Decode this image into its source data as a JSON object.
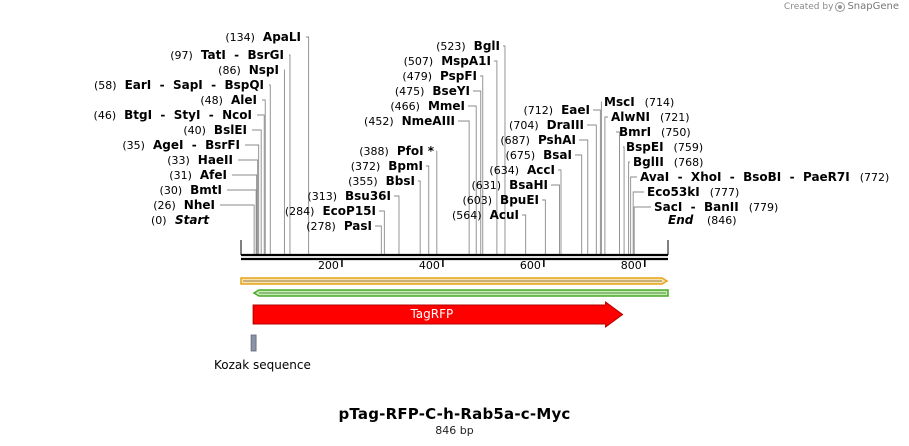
{
  "credit": {
    "text": "Created by",
    "brand": "SnapGene"
  },
  "plasmid": {
    "name": "pTag-RFP-C-h-Rab5a-c-Myc",
    "length_label": "846 bp",
    "length": 846
  },
  "ends": {
    "start": {
      "pos_label": "(0)",
      "label": "Start",
      "pos": 0
    },
    "end": {
      "pos_label": "(846)",
      "label": "End",
      "pos": 846
    }
  },
  "ruler": {
    "ticks": [
      {
        "label": "200",
        "pos": 200
      },
      {
        "label": "400",
        "pos": 400
      },
      {
        "label": "600",
        "pos": 600
      },
      {
        "label": "800",
        "pos": 800
      }
    ]
  },
  "sites_left": [
    {
      "pos_label": "(134)",
      "names": "ApaLI",
      "pos": 134
    },
    {
      "pos_label": "(97)",
      "names": "TatI - BsrGI",
      "pos": 97
    },
    {
      "pos_label": "(86)",
      "names": "NspI",
      "pos": 86
    },
    {
      "pos_label": "(58)",
      "names": "EarI - SapI - BspQI",
      "pos": 58
    },
    {
      "pos_label": "(48)",
      "names": "AleI",
      "pos": 48
    },
    {
      "pos_label": "(46)",
      "names": "BtgI - StyI - NcoI",
      "pos": 46
    },
    {
      "pos_label": "(40)",
      "names": "BslEI",
      "pos": 40
    },
    {
      "pos_label": "(35)",
      "names": "AgeI - BsrFI",
      "pos": 35
    },
    {
      "pos_label": "(33)",
      "names": "HaeII",
      "pos": 33
    },
    {
      "pos_label": "(31)",
      "names": "AfeI",
      "pos": 31
    },
    {
      "pos_label": "(30)",
      "names": "BmtI",
      "pos": 30
    },
    {
      "pos_label": "(26)",
      "names": "NheI",
      "pos": 26
    }
  ],
  "sites_middle": [
    {
      "pos_label": "(523)",
      "names": "BglI",
      "pos": 523
    },
    {
      "pos_label": "(507)",
      "names": "MspA1I",
      "pos": 507
    },
    {
      "pos_label": "(479)",
      "names": "PspFI",
      "pos": 479
    },
    {
      "pos_label": "(475)",
      "names": "BseYI",
      "pos": 475
    },
    {
      "pos_label": "(466)",
      "names": "MmeI",
      "pos": 466
    },
    {
      "pos_label": "(452)",
      "names": "NmeAIII",
      "pos": 452
    },
    {
      "pos_label": "(388)",
      "names": "PfoI *",
      "pos": 388
    },
    {
      "pos_label": "(372)",
      "names": "BpmI",
      "pos": 372
    },
    {
      "pos_label": "(355)",
      "names": "BbsI",
      "pos": 355
    },
    {
      "pos_label": "(313)",
      "names": "Bsu36I",
      "pos": 313
    },
    {
      "pos_label": "(284)",
      "names": "EcoP15I",
      "pos": 284
    },
    {
      "pos_label": "(278)",
      "names": "PasI",
      "pos": 278
    }
  ],
  "sites_center": [
    {
      "pos_label": "(712)",
      "names": "EaeI",
      "pos": 712
    },
    {
      "pos_label": "(704)",
      "names": "DraIII",
      "pos": 704
    },
    {
      "pos_label": "(687)",
      "names": "PshAI",
      "pos": 687
    },
    {
      "pos_label": "(675)",
      "names": "BsaI",
      "pos": 675
    },
    {
      "pos_label": "(634)",
      "names": "AccI",
      "pos": 634
    },
    {
      "pos_label": "(631)",
      "names": "BsaHI",
      "pos": 631
    },
    {
      "pos_label": "(603)",
      "names": "BpuEI",
      "pos": 603
    },
    {
      "pos_label": "(564)",
      "names": "AcuI",
      "pos": 564
    }
  ],
  "sites_right": [
    {
      "pos_label": "(714)",
      "names": "MscI",
      "pos": 714
    },
    {
      "pos_label": "(721)",
      "names": "AlwNI",
      "pos": 721
    },
    {
      "pos_label": "(750)",
      "names": "BmrI",
      "pos": 750
    },
    {
      "pos_label": "(759)",
      "names": "BspEI",
      "pos": 759
    },
    {
      "pos_label": "(768)",
      "names": "BglII",
      "pos": 768
    },
    {
      "pos_label": "(772)",
      "names": "AvaI - XhoI - BsoBI - PaeR7I",
      "pos": 772
    },
    {
      "pos_label": "(777)",
      "names": "Eco53kI",
      "pos": 777
    },
    {
      "pos_label": "(779)",
      "names": "SacI - BanII",
      "pos": 779
    }
  ],
  "features": [
    {
      "name": "TagRFP",
      "start": 24,
      "end": 756,
      "color": "#ff0000",
      "direction": "forward"
    },
    {
      "name": "Kozak sequence",
      "start": 18,
      "end": 24,
      "color": "#8a94a6",
      "direction": "none"
    }
  ],
  "colors": {
    "orf_forward_outline": "#e8a317",
    "orf_forward_fill": "#f6e3b3",
    "orf_reverse_outline": "#4aa82a",
    "orf_reverse_fill": "#c5ecb2"
  }
}
